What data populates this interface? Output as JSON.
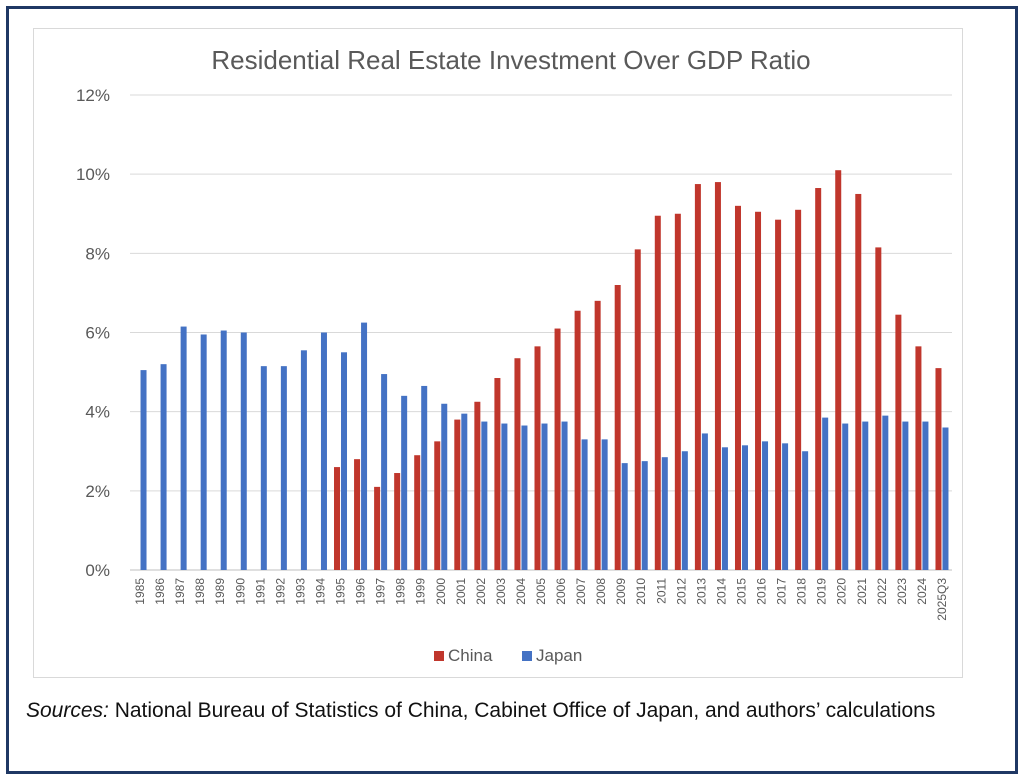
{
  "chart_data": {
    "type": "bar",
    "title": "Residential Real Estate Investment Over GDP Ratio",
    "xlabel": "",
    "ylabel": "",
    "ylim": [
      0,
      12
    ],
    "yticks": [
      "0%",
      "2%",
      "4%",
      "6%",
      "8%",
      "10%",
      "12%"
    ],
    "ytick_values": [
      0,
      2,
      4,
      6,
      8,
      10,
      12
    ],
    "grid": true,
    "legend_position": "bottom-center",
    "categories": [
      "1985",
      "1986",
      "1987",
      "1988",
      "1989",
      "1990",
      "1991",
      "1992",
      "1993",
      "1994",
      "1995",
      "1996",
      "1997",
      "1998",
      "1999",
      "2000",
      "2001",
      "2002",
      "2003",
      "2004",
      "2005",
      "2006",
      "2007",
      "2008",
      "2009",
      "2010",
      "2011",
      "2012",
      "2013",
      "2014",
      "2015",
      "2016",
      "2017",
      "2018",
      "2019",
      "2020",
      "2021",
      "2022",
      "2023",
      "2024",
      "2025Q3"
    ],
    "series": [
      {
        "name": "China",
        "color": "#c0362c",
        "values": [
          null,
          null,
          null,
          null,
          null,
          null,
          null,
          null,
          null,
          null,
          2.6,
          2.8,
          2.1,
          2.45,
          2.9,
          3.25,
          3.8,
          4.25,
          4.85,
          5.35,
          5.65,
          6.1,
          6.55,
          6.8,
          7.2,
          8.1,
          8.95,
          9.0,
          9.75,
          9.8,
          9.2,
          9.05,
          8.85,
          9.1,
          9.65,
          10.1,
          9.5,
          8.15,
          6.45,
          5.65,
          5.1
        ]
      },
      {
        "name": "Japan",
        "color": "#4472c4",
        "values": [
          5.05,
          5.2,
          6.15,
          5.95,
          6.05,
          6.0,
          5.15,
          5.15,
          5.55,
          6.0,
          5.5,
          6.25,
          4.95,
          4.4,
          4.65,
          4.2,
          3.95,
          3.75,
          3.7,
          3.65,
          3.7,
          3.75,
          3.3,
          3.3,
          2.7,
          2.75,
          2.85,
          3.0,
          3.45,
          3.1,
          3.15,
          3.25,
          3.2,
          3.0,
          3.85,
          3.7,
          3.75,
          3.9,
          3.75,
          3.75,
          3.6
        ]
      }
    ]
  },
  "sources": {
    "label": "Sources:",
    "text": " National Bureau of Statistics of China, Cabinet Office of Japan, and authors’ calculations"
  }
}
